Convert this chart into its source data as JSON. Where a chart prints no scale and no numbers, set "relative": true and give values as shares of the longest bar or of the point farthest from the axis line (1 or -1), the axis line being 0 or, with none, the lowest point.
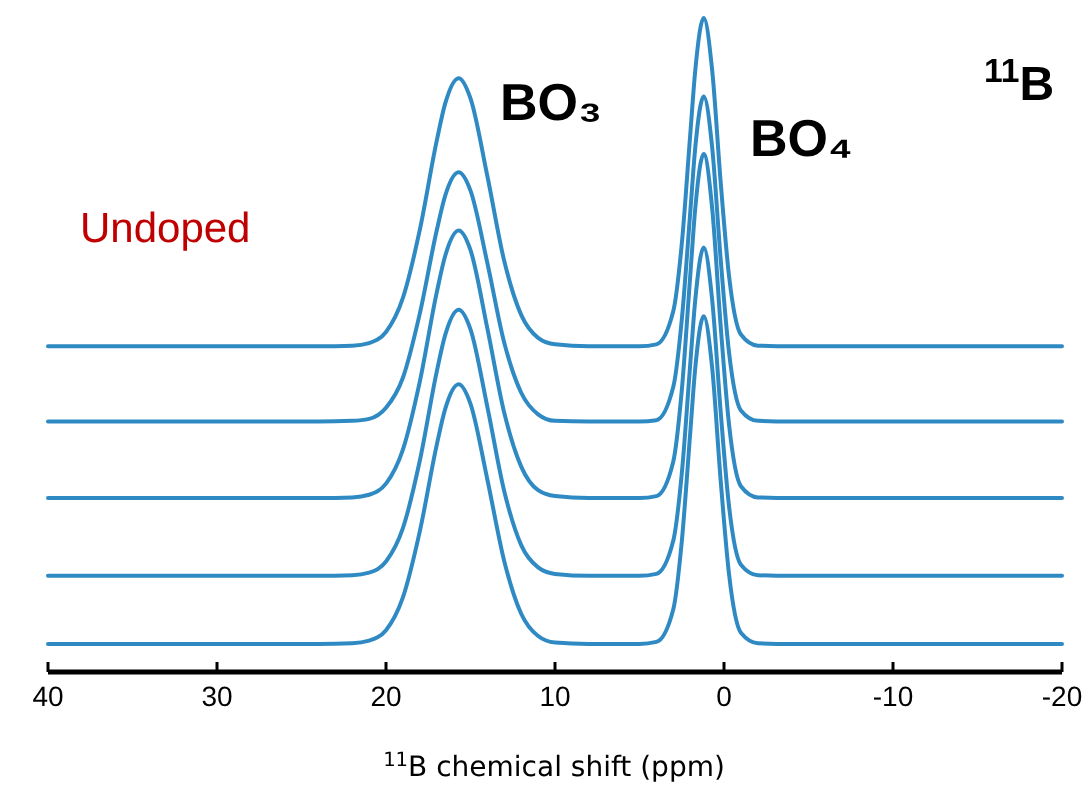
{
  "chart_data": {
    "type": "line",
    "relative": true,
    "xlabel": "$^{11}$B chemical shift (ppm)",
    "x": [
      40,
      30,
      24,
      22,
      21,
      20,
      19,
      18,
      17,
      16.5,
      15.7,
      15,
      14,
      13,
      12,
      11,
      10,
      8,
      5,
      4,
      3,
      2.5,
      2,
      1.7,
      1.2,
      0.7,
      0.2,
      -0.3,
      -1,
      -2,
      -4,
      -20
    ],
    "xlim": [
      40,
      -20
    ],
    "xticks": [
      40,
      30,
      20,
      10,
      0,
      -10,
      -20
    ],
    "series": [
      {
        "color": "#2f8ac4",
        "values": [
          0.498,
          0.498,
          0.498,
          0.499,
          0.503,
          0.52,
          0.572,
          0.676,
          0.812,
          0.869,
          0.908,
          0.877,
          0.758,
          0.628,
          0.546,
          0.511,
          0.501,
          0.498,
          0.498,
          0.501,
          0.552,
          0.654,
          0.821,
          0.92,
          1.0,
          0.92,
          0.75,
          0.605,
          0.516,
          0.499,
          0.498,
          0.498
        ]
      },
      {
        "color": "#2f8ac4",
        "values": [
          0.383,
          0.383,
          0.383,
          0.384,
          0.387,
          0.404,
          0.45,
          0.548,
          0.675,
          0.728,
          0.764,
          0.736,
          0.625,
          0.503,
          0.427,
          0.394,
          0.384,
          0.383,
          0.383,
          0.385,
          0.436,
          0.538,
          0.702,
          0.802,
          0.88,
          0.802,
          0.632,
          0.488,
          0.4,
          0.384,
          0.383,
          0.383
        ]
      },
      {
        "color": "#2f8ac4",
        "values": [
          0.266,
          0.266,
          0.266,
          0.267,
          0.271,
          0.288,
          0.34,
          0.444,
          0.58,
          0.636,
          0.675,
          0.645,
          0.525,
          0.396,
          0.314,
          0.278,
          0.269,
          0.266,
          0.266,
          0.269,
          0.322,
          0.43,
          0.605,
          0.709,
          0.792,
          0.709,
          0.53,
          0.378,
          0.284,
          0.267,
          0.266,
          0.266
        ]
      },
      {
        "color": "#2f8ac4",
        "values": [
          0.147,
          0.147,
          0.147,
          0.148,
          0.152,
          0.169,
          0.22,
          0.323,
          0.459,
          0.515,
          0.554,
          0.524,
          0.405,
          0.276,
          0.194,
          0.16,
          0.15,
          0.147,
          0.147,
          0.15,
          0.201,
          0.303,
          0.47,
          0.569,
          0.649,
          0.569,
          0.399,
          0.253,
          0.164,
          0.148,
          0.147,
          0.147
        ]
      },
      {
        "color": "#2f8ac4",
        "values": [
          0.043,
          0.043,
          0.043,
          0.044,
          0.048,
          0.064,
          0.114,
          0.215,
          0.347,
          0.402,
          0.44,
          0.41,
          0.294,
          0.169,
          0.089,
          0.055,
          0.045,
          0.043,
          0.043,
          0.046,
          0.096,
          0.199,
          0.365,
          0.465,
          0.544,
          0.465,
          0.294,
          0.149,
          0.06,
          0.044,
          0.043,
          0.043
        ]
      }
    ],
    "annotations": [
      "BO₃",
      "BO₄",
      "Undoped",
      "$^{11}$B"
    ],
    "legend": false,
    "grid": false,
    "marker": "none",
    "line_style": "solid"
  }
}
